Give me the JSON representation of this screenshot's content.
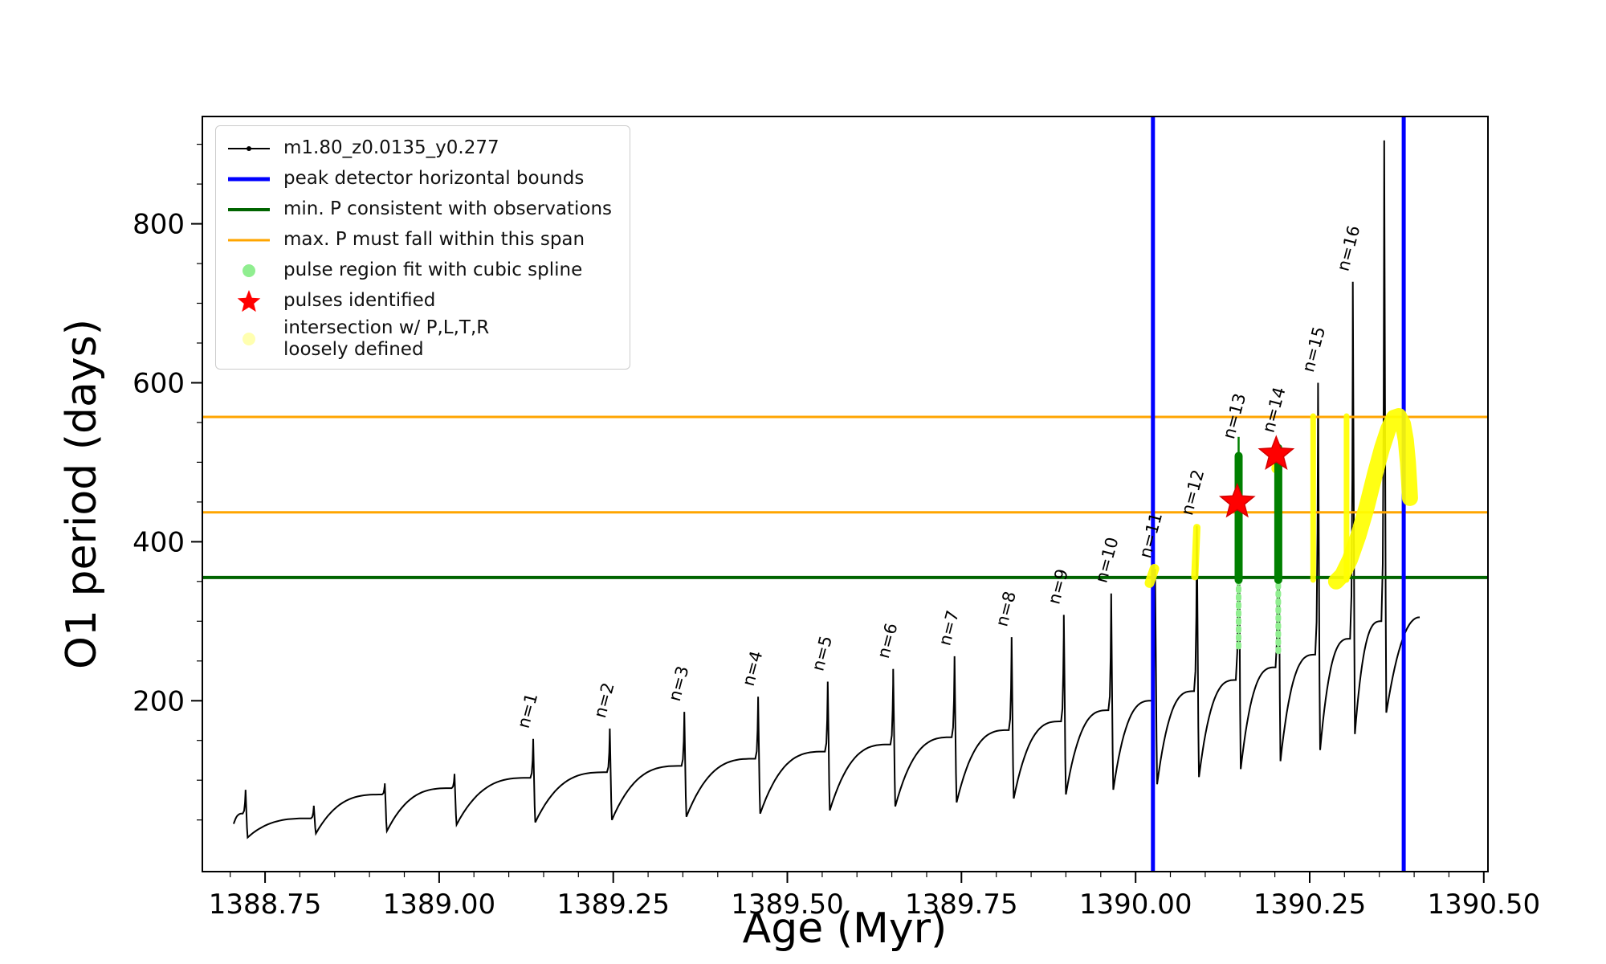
{
  "chart_data": {
    "type": "line",
    "title": "",
    "xlabel": "Age (Myr)",
    "ylabel": "O1 period (days)",
    "xlim": [
      1388.66,
      1390.506
    ],
    "ylim": [
      -15,
      935
    ],
    "xticks": {
      "values": [
        1388.75,
        1389.0,
        1389.25,
        1389.5,
        1389.75,
        1390.0,
        1390.25,
        1390.5
      ],
      "labels": [
        "1388.75",
        "1389.00",
        "1389.25",
        "1389.50",
        "1389.75",
        "1390.00",
        "1390.25",
        "1390.50"
      ]
    },
    "yticks": {
      "values": [
        200,
        400,
        600,
        800
      ],
      "labels": [
        "200",
        "400",
        "600",
        "800"
      ]
    },
    "minor_x_step": 0.05,
    "minor_y_step": 50,
    "grid": false,
    "series_name": "m1.80_z0.0135_y0.277",
    "series_color": "#000000",
    "curve": {
      "start": {
        "t": 1388.705,
        "v": 45
      },
      "cycles": [
        {
          "p": 1388.722,
          "peak": 88,
          "plateau": 58,
          "trough": 28
        },
        {
          "p": 1388.82,
          "peak": 68,
          "plateau": 52,
          "trough": 33
        },
        {
          "p": 1388.922,
          "peak": 96,
          "plateau": 82,
          "trough": 36
        },
        {
          "p": 1389.022,
          "peak": 108,
          "plateau": 90,
          "trough": 44
        },
        {
          "p": 1389.135,
          "peak": 152,
          "plateau": 103,
          "trough": 47,
          "n": "n=1"
        },
        {
          "p": 1389.245,
          "peak": 165,
          "plateau": 110,
          "trough": 50,
          "n": "n=2"
        },
        {
          "p": 1389.352,
          "peak": 186,
          "plateau": 118,
          "trough": 54,
          "n": "n=3"
        },
        {
          "p": 1389.458,
          "peak": 205,
          "plateau": 127,
          "trough": 58,
          "n": "n=4"
        },
        {
          "p": 1389.558,
          "peak": 224,
          "plateau": 136,
          "trough": 62,
          "n": "n=5"
        },
        {
          "p": 1389.652,
          "peak": 240,
          "plateau": 145,
          "trough": 67,
          "n": "n=6"
        },
        {
          "p": 1389.74,
          "peak": 256,
          "plateau": 154,
          "trough": 72,
          "n": "n=7"
        },
        {
          "p": 1389.822,
          "peak": 280,
          "plateau": 163,
          "trough": 77,
          "n": "n=8"
        },
        {
          "p": 1389.897,
          "peak": 308,
          "plateau": 174,
          "trough": 82,
          "n": "n=9"
        },
        {
          "p": 1389.965,
          "peak": 335,
          "plateau": 188,
          "trough": 88,
          "n": "n=10"
        },
        {
          "p": 1390.028,
          "peak": 366,
          "plateau": 200,
          "trough": 95,
          "n": "n=11"
        },
        {
          "p": 1390.088,
          "peak": 420,
          "plateau": 212,
          "trough": 104,
          "n": "n=12"
        },
        {
          "p": 1390.148,
          "peak": 516,
          "plateau": 226,
          "trough": 114,
          "n": "n=13"
        },
        {
          "p": 1390.205,
          "peak": 524,
          "plateau": 242,
          "trough": 124,
          "n": "n=14"
        },
        {
          "p": 1390.262,
          "peak": 600,
          "plateau": 258,
          "trough": 138,
          "n": "n=15"
        },
        {
          "p": 1390.312,
          "peak": 727,
          "plateau": 278,
          "trough": 158,
          "n": "n=16"
        },
        {
          "p": 1390.357,
          "peak": 905,
          "plateau": 300,
          "trough": 185
        }
      ],
      "tail": {
        "t": 1390.408,
        "v": 305
      }
    },
    "hlines": [
      {
        "y": 355,
        "color": "#006400",
        "width": 4,
        "name": "min-P-consistent-line"
      },
      {
        "y": 437,
        "color": "#FFA500",
        "width": 3,
        "name": "max-P-span-lower-line"
      },
      {
        "y": 557,
        "color": "#FFA500",
        "width": 3,
        "name": "max-P-span-upper-line"
      }
    ],
    "vlines": [
      {
        "x": 1390.025,
        "color": "#0000FF",
        "width": 5,
        "name": "peak-detector-left-bound"
      },
      {
        "x": 1390.385,
        "color": "#0000FF",
        "width": 5,
        "name": "peak-detector-right-bound"
      }
    ],
    "pulse_regions": [
      {
        "x": 1390.148,
        "light": [
          268,
          360
        ],
        "dark": [
          352,
          508
        ],
        "thin_top": 532
      },
      {
        "x": 1390.205,
        "light": [
          262,
          360
        ],
        "dark": [
          352,
          518
        ],
        "thin_top": 524
      }
    ],
    "stars": [
      {
        "x": 1390.146,
        "y": 450
      },
      {
        "x": 1390.202,
        "y": 510
      }
    ],
    "star_color": "#FF0000",
    "yellow_color": "#FFFF00",
    "yellow_segments": [
      {
        "width": 12,
        "pts": [
          [
            1390.02,
            348
          ],
          [
            1390.027,
            366
          ]
        ]
      },
      {
        "width": 9,
        "pts": [
          [
            1390.085,
            356
          ],
          [
            1390.088,
            418
          ]
        ]
      },
      {
        "width": 12,
        "pts": [
          [
            1390.202,
            492
          ],
          [
            1390.204,
            506
          ]
        ]
      },
      {
        "width": 7,
        "pts": [
          [
            1390.255,
            352
          ],
          [
            1390.255,
            558
          ]
        ]
      },
      {
        "width": 7,
        "pts": [
          [
            1390.303,
            352
          ],
          [
            1390.303,
            558
          ]
        ]
      },
      {
        "width": 20,
        "pts": [
          [
            1390.288,
            350
          ],
          [
            1390.297,
            358
          ],
          [
            1390.308,
            378
          ],
          [
            1390.32,
            408
          ],
          [
            1390.332,
            444
          ],
          [
            1390.344,
            486
          ],
          [
            1390.354,
            518
          ],
          [
            1390.363,
            542
          ],
          [
            1390.371,
            556
          ],
          [
            1390.378,
            558
          ],
          [
            1390.384,
            548
          ],
          [
            1390.388,
            528
          ],
          [
            1390.391,
            500
          ],
          [
            1390.393,
            472
          ],
          [
            1390.394,
            455
          ]
        ]
      }
    ],
    "green_light": "#90EE90",
    "green_dark": "#008000",
    "legend": {
      "position": "upper-left",
      "entries": [
        {
          "label": "m1.80_z0.0135_y0.277",
          "marker": "line-dots",
          "color": "#000000",
          "width": 2
        },
        {
          "label": "peak detector horizontal bounds",
          "marker": "line",
          "color": "#0000FF",
          "width": 5
        },
        {
          "label": "min. P consistent with observations",
          "marker": "line",
          "color": "#006400",
          "width": 4
        },
        {
          "label": "max. P must fall within this span",
          "marker": "line",
          "color": "#FFA500",
          "width": 3
        },
        {
          "label": "pulse region fit with cubic spline",
          "marker": "dot",
          "color": "#90EE90"
        },
        {
          "label": "pulses identified",
          "marker": "star",
          "color": "#FF0000"
        },
        {
          "label": "intersection w/ P,L,T,R\nloosely defined",
          "marker": "dot",
          "color": "#FFFFB0"
        }
      ]
    }
  }
}
